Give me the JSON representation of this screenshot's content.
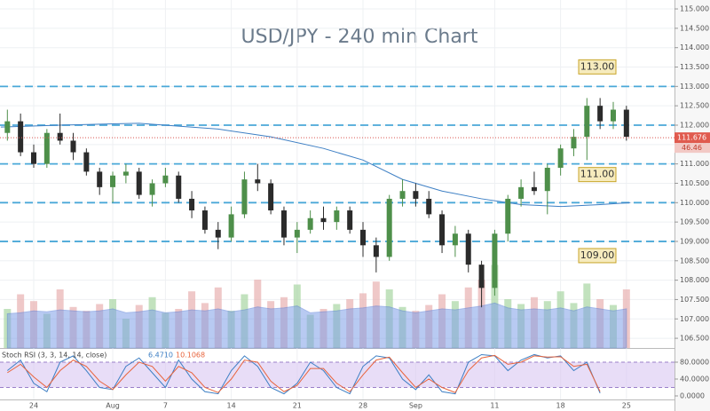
{
  "chart_data": {
    "type": "candlestick",
    "title": "USD/JPY - 240 min Chart",
    "x": [
      -2,
      -1,
      0,
      1,
      2,
      3,
      4,
      5,
      6,
      7,
      8,
      9,
      10,
      11,
      12,
      13,
      14,
      15,
      16,
      17,
      18,
      19,
      20,
      21,
      22,
      23,
      24,
      25,
      26,
      27,
      28,
      29,
      30,
      31,
      32,
      33,
      34,
      35,
      36,
      37,
      38,
      39,
      40,
      41,
      42,
      43,
      44,
      45
    ],
    "open": [
      111.8,
      112.1,
      111.3,
      111.0,
      111.8,
      111.6,
      111.3,
      110.8,
      110.4,
      110.7,
      110.8,
      110.2,
      110.5,
      110.7,
      110.1,
      109.8,
      109.3,
      109.1,
      109.7,
      110.6,
      110.5,
      109.8,
      109.1,
      109.3,
      109.6,
      109.5,
      109.8,
      109.3,
      108.9,
      108.6,
      110.1,
      110.3,
      110.1,
      109.7,
      108.9,
      109.2,
      108.4,
      107.8,
      109.2,
      110.1,
      110.4,
      110.3,
      110.9,
      111.4,
      111.7,
      112.5,
      112.1,
      112.4
    ],
    "high": [
      112.4,
      112.3,
      111.5,
      111.9,
      112.3,
      111.8,
      111.4,
      110.9,
      110.8,
      111.0,
      110.9,
      110.6,
      110.9,
      110.8,
      110.3,
      109.9,
      109.5,
      109.9,
      110.8,
      111.0,
      110.6,
      109.9,
      109.5,
      109.8,
      109.9,
      109.9,
      109.9,
      109.5,
      109.1,
      110.2,
      110.6,
      110.5,
      110.3,
      109.8,
      109.4,
      109.3,
      108.5,
      109.3,
      110.2,
      110.6,
      110.8,
      111.0,
      111.5,
      111.9,
      112.7,
      112.7,
      112.6,
      112.5
    ],
    "low": [
      111.6,
      111.2,
      110.9,
      110.9,
      111.5,
      111.1,
      110.7,
      110.2,
      110.0,
      110.5,
      110.1,
      109.9,
      110.4,
      110.0,
      109.6,
      109.2,
      108.8,
      109.0,
      109.6,
      110.3,
      109.7,
      108.9,
      108.7,
      109.2,
      109.3,
      109.3,
      109.2,
      108.6,
      108.2,
      108.5,
      109.9,
      109.9,
      109.6,
      108.7,
      108.6,
      108.2,
      107.3,
      107.6,
      109.0,
      109.9,
      110.2,
      109.7,
      110.7,
      111.2,
      111.1,
      111.9,
      111.9,
      111.6
    ],
    "close": [
      112.1,
      111.3,
      111.0,
      111.8,
      111.6,
      111.3,
      110.8,
      110.4,
      110.7,
      110.8,
      110.2,
      110.5,
      110.7,
      110.1,
      109.8,
      109.3,
      109.1,
      109.7,
      110.6,
      110.5,
      109.8,
      109.1,
      109.3,
      109.6,
      109.5,
      109.8,
      109.3,
      108.9,
      108.6,
      110.1,
      110.3,
      110.1,
      109.7,
      108.9,
      109.2,
      108.4,
      107.8,
      109.2,
      110.1,
      110.4,
      110.3,
      110.9,
      111.4,
      111.7,
      112.5,
      112.1,
      112.4,
      111.7
    ],
    "up_color": "#4e8f4a",
    "down_color": "#2b2b2b",
    "xlim": [
      -2.56,
      48.65
    ],
    "ylim": [
      106.25,
      115.23
    ],
    "yticks": [
      {
        "value": 106.5,
        "label": "106.500"
      },
      {
        "value": 107,
        "label": "107.000"
      },
      {
        "value": 107.5,
        "label": "107.500"
      },
      {
        "value": 108,
        "label": "108.000"
      },
      {
        "value": 108.5,
        "label": "108.500"
      },
      {
        "value": 109,
        "label": "109.000"
      },
      {
        "value": 109.5,
        "label": "109.500"
      },
      {
        "value": 110,
        "label": "110.000"
      },
      {
        "value": 110.5,
        "label": "110.500"
      },
      {
        "value": 111,
        "label": "111.000"
      },
      {
        "value": 111.5,
        "label": "111.500"
      },
      {
        "value": 112,
        "label": "112.000"
      },
      {
        "value": 112.5,
        "label": "112.500"
      },
      {
        "value": 113,
        "label": "113.000"
      },
      {
        "value": 113.5,
        "label": "113.500"
      },
      {
        "value": 114,
        "label": "114.000"
      },
      {
        "value": 114.5,
        "label": "114.500"
      },
      {
        "value": 115,
        "label": "115.000"
      }
    ],
    "xticks": [
      {
        "value": 0,
        "label": "24"
      },
      {
        "value": 6,
        "label": "Aug"
      },
      {
        "value": 10,
        "label": "7"
      },
      {
        "value": 15,
        "label": "14"
      },
      {
        "value": 20,
        "label": "21"
      },
      {
        "value": 25,
        "label": "28"
      },
      {
        "value": 29,
        "label": "Sep"
      },
      {
        "value": 35,
        "label": "11"
      },
      {
        "value": 40,
        "label": "18"
      },
      {
        "value": 45,
        "label": "25"
      }
    ],
    "levels": [
      {
        "value": 113,
        "label": "113.00"
      },
      112,
      {
        "value": 111,
        "label": "111.00"
      },
      110,
      {
        "value": 109,
        "label": "109.00"
      }
    ],
    "level_color": "#4aa8d8",
    "last_price": {
      "value": 111.676,
      "label": "111.676"
    },
    "timer_label": "46.46",
    "ma": {
      "color": "#3d7fc4",
      "x": [
        -2.5,
        2,
        8,
        14,
        18,
        22,
        25,
        28,
        31,
        34,
        37,
        40,
        43,
        45.3
      ],
      "values": [
        111.95,
        112.0,
        112.05,
        111.9,
        111.7,
        111.4,
        111.1,
        110.6,
        110.3,
        110.1,
        109.95,
        109.9,
        109.95,
        110.0
      ]
    },
    "volume": {
      "ylim": [
        0,
        100
      ],
      "values": [
        40,
        55,
        48,
        35,
        60,
        42,
        38,
        45,
        50,
        30,
        44,
        52,
        36,
        40,
        58,
        46,
        62,
        38,
        55,
        70,
        48,
        52,
        65,
        34,
        40,
        45,
        50,
        56,
        68,
        60,
        42,
        38,
        44,
        55,
        48,
        62,
        70,
        85,
        50,
        45,
        52,
        48,
        58,
        46,
        66,
        50,
        44,
        60
      ],
      "ma": [
        35,
        36,
        38,
        37,
        39,
        38,
        37,
        38,
        40,
        36,
        37,
        39,
        36,
        37,
        39,
        38,
        40,
        37,
        39,
        42,
        40,
        41,
        43,
        36,
        37,
        38,
        40,
        41,
        43,
        42,
        38,
        36,
        38,
        40,
        39,
        41,
        43,
        46,
        41,
        39,
        40,
        39,
        41,
        38,
        42,
        40,
        38,
        40
      ],
      "ma_color": "#7f9fe8"
    },
    "stoch": {
      "title": "Stoch RSI (3, 3, 14, 14, close)",
      "readout": [
        "6.4710",
        "10.1068"
      ],
      "ylim": [
        -8.4,
        111.6
      ],
      "band": [
        20,
        80
      ],
      "yticks": [
        {
          "value": 80,
          "label": "80.0000"
        },
        {
          "value": 40,
          "label": "40.0000"
        },
        {
          "value": 0,
          "label": "0.0000"
        }
      ],
      "series": [
        {
          "color": "#3d7fc4",
          "values": [
            60,
            85,
            30,
            10,
            80,
            95,
            60,
            20,
            15,
            70,
            90,
            55,
            20,
            85,
            40,
            10,
            5,
            60,
            95,
            70,
            20,
            5,
            30,
            80,
            60,
            20,
            5,
            70,
            95,
            90,
            40,
            15,
            50,
            10,
            5,
            80,
            98,
            95,
            60,
            85,
            98,
            90,
            95,
            60,
            80,
            6.471
          ]
        },
        {
          "color": "#e8643c",
          "values": [
            55,
            75,
            45,
            20,
            60,
            85,
            70,
            35,
            15,
            50,
            80,
            70,
            35,
            70,
            55,
            20,
            8,
            40,
            85,
            80,
            35,
            10,
            25,
            65,
            65,
            30,
            10,
            50,
            85,
            92,
            55,
            20,
            40,
            20,
            8,
            60,
            90,
            96,
            75,
            80,
            95,
            92,
            93,
            70,
            75,
            10.1068
          ]
        }
      ]
    }
  }
}
